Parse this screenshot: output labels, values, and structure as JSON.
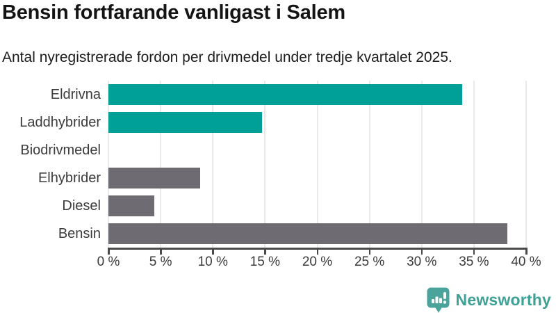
{
  "header": {
    "title": "Bensin fortfarande vanligast i Salem",
    "subtitle": "Antal nyregistrerade fordon per drivmedel under tredje kvartalet 2025."
  },
  "chart_data": {
    "type": "bar",
    "orientation": "horizontal",
    "title": "Bensin fortfarande vanligast i Salem",
    "subtitle": "Antal nyregistrerade fordon per drivmedel under tredje kvartalet 2025.",
    "categories": [
      "Eldrivna",
      "Laddhybrider",
      "Biodrivmedel",
      "Elhybrider",
      "Diesel",
      "Bensin"
    ],
    "values": [
      33.9,
      14.7,
      0,
      8.8,
      4.4,
      38.2
    ],
    "unit": "%",
    "bar_colors": [
      "#00a099",
      "#00a099",
      "#6e6c72",
      "#6e6c72",
      "#6e6c72",
      "#6e6c72"
    ],
    "xlim": [
      0,
      40
    ],
    "x_ticks": [
      0,
      5,
      10,
      15,
      20,
      25,
      30,
      35,
      40
    ],
    "x_tick_labels": [
      "0 %",
      "5 %",
      "10 %",
      "15 %",
      "20 %",
      "25 %",
      "30 %",
      "35 %",
      "40 %"
    ],
    "grid": true,
    "legend": false
  },
  "branding": {
    "name": "Newsworthy",
    "icon": "newsworthy-bubble-barchart-icon",
    "icon_color": "#4aa49c",
    "text_color": "#3fa096"
  },
  "colors": {
    "accent_teal": "#00a099",
    "neutral_gray": "#6e6c72",
    "axis": "#4a4a4a",
    "gridline": "#e9e9e9",
    "title_text": "#141414",
    "label_text": "#3b3b3b",
    "background": "#ffffff"
  }
}
